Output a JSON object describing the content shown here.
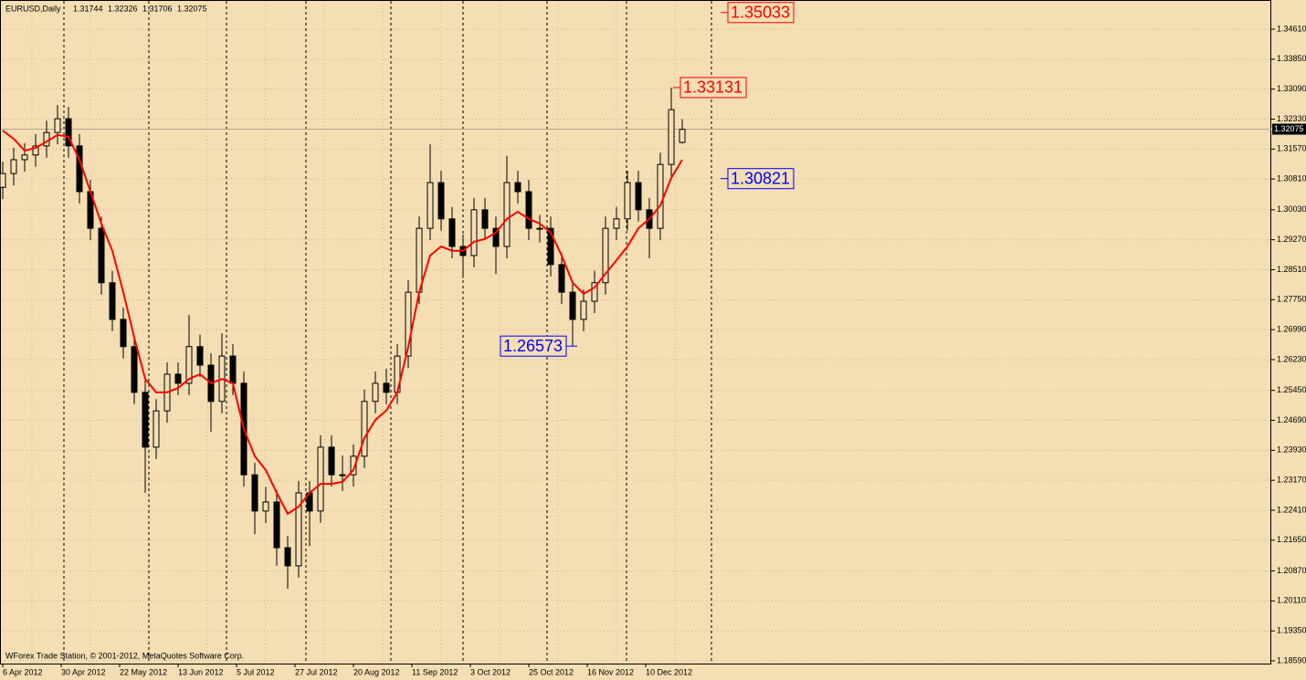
{
  "chart_data": {
    "type": "candlestick",
    "title": "EURUSD,Daily",
    "header_values": [
      1.31744,
      1.32326,
      1.31706,
      1.32075
    ],
    "footer": "WForex Trade Station, © 2001-2012, MetaQuotes Software Corp.",
    "last_price": 1.32075,
    "categories": [
      "6 Apr 2012",
      "30 Apr 2012",
      "22 May 2012",
      "13 Jun 2012",
      "5 Jul 2012",
      "27 Jul 2012",
      "20 Aug 2012",
      "11 Sep 2012",
      "3 Oct 2012",
      "25 Oct 2012",
      "16 Nov 2012",
      "10 Dec 2012"
    ],
    "ylim": [
      1.18521,
      1.35351
    ],
    "yticks": [
      {
        "value": 1.3461,
        "label": "1.34610"
      },
      {
        "value": 1.3385,
        "label": "1.33850"
      },
      {
        "value": 1.3309,
        "label": "1.33090"
      },
      {
        "value": 1.3233,
        "label": "1.32330"
      },
      {
        "value": 1.3157,
        "label": "1.31570"
      },
      {
        "value": 1.3081,
        "label": "1.30810"
      },
      {
        "value": 1.3003,
        "label": "1.30030"
      },
      {
        "value": 1.2927,
        "label": "1.29270"
      },
      {
        "value": 1.2851,
        "label": "1.28510"
      },
      {
        "value": 1.2775,
        "label": "1.27750"
      },
      {
        "value": 1.2699,
        "label": "1.26990"
      },
      {
        "value": 1.2623,
        "label": "1.26230"
      },
      {
        "value": 1.2545,
        "label": "1.25450"
      },
      {
        "value": 1.2469,
        "label": "1.24690"
      },
      {
        "value": 1.2393,
        "label": "1.23930"
      },
      {
        "value": 1.2317,
        "label": "1.23170"
      },
      {
        "value": 1.2241,
        "label": "1.22410"
      },
      {
        "value": 1.2165,
        "label": "1.21650"
      },
      {
        "value": 1.2087,
        "label": "1.20870"
      },
      {
        "value": 1.2011,
        "label": "1.20110"
      },
      {
        "value": 1.1935,
        "label": "1.19350"
      },
      {
        "value": 1.1859,
        "label": "1.18590"
      }
    ],
    "grid": true,
    "ohlc": [
      [
        1.306,
        1.3125,
        1.303,
        1.3095
      ],
      [
        1.3095,
        1.316,
        1.3065,
        1.313
      ],
      [
        1.313,
        1.3172,
        1.31,
        1.3142
      ],
      [
        1.3142,
        1.3195,
        1.3112,
        1.3165
      ],
      [
        1.3165,
        1.3229,
        1.3135,
        1.3199
      ],
      [
        1.3199,
        1.3269,
        1.3169,
        1.3234
      ],
      [
        1.3234,
        1.3264,
        1.3135,
        1.3165
      ],
      [
        1.3165,
        1.3195,
        1.3019,
        1.3049
      ],
      [
        1.3049,
        1.3079,
        1.2926,
        1.2956
      ],
      [
        1.2956,
        1.2986,
        1.2788,
        1.2818
      ],
      [
        1.2818,
        1.2848,
        1.2695,
        1.2725
      ],
      [
        1.2725,
        1.2755,
        1.2626,
        1.2656
      ],
      [
        1.2656,
        1.2686,
        1.251,
        1.254
      ],
      [
        1.254,
        1.257,
        1.2285,
        1.2401
      ],
      [
        1.2401,
        1.2523,
        1.2371,
        1.2493
      ],
      [
        1.2493,
        1.2616,
        1.2463,
        1.2586
      ],
      [
        1.2586,
        1.2616,
        1.2533,
        1.2563
      ],
      [
        1.2563,
        1.2736,
        1.2533,
        1.2656
      ],
      [
        1.2656,
        1.2686,
        1.2579,
        1.2609
      ],
      [
        1.2609,
        1.2639,
        1.244,
        1.2517
      ],
      [
        1.2517,
        1.269,
        1.2487,
        1.2632
      ],
      [
        1.2632,
        1.2662,
        1.2533,
        1.2563
      ],
      [
        1.2563,
        1.2593,
        1.2301,
        1.2331
      ],
      [
        1.2331,
        1.2361,
        1.218,
        1.2239
      ],
      [
        1.2239,
        1.23,
        1.2209,
        1.2262
      ],
      [
        1.2262,
        1.2292,
        1.21,
        1.2146
      ],
      [
        1.2146,
        1.2176,
        1.2042,
        1.21
      ],
      [
        1.21,
        1.2315,
        1.207,
        1.2285
      ],
      [
        1.2285,
        1.2315,
        1.215,
        1.2239
      ],
      [
        1.2239,
        1.2431,
        1.2209,
        1.2401
      ],
      [
        1.2401,
        1.2431,
        1.2301,
        1.2331
      ],
      [
        1.2331,
        1.238,
        1.229,
        1.2331
      ],
      [
        1.2331,
        1.2408,
        1.2301,
        1.2378
      ],
      [
        1.2378,
        1.2547,
        1.2348,
        1.2517
      ],
      [
        1.2517,
        1.2593,
        1.2487,
        1.2563
      ],
      [
        1.2563,
        1.26,
        1.251,
        1.254
      ],
      [
        1.254,
        1.2662,
        1.251,
        1.2632
      ],
      [
        1.2632,
        1.2824,
        1.2602,
        1.2794
      ],
      [
        1.2794,
        1.2986,
        1.2764,
        1.2956
      ],
      [
        1.2956,
        1.3169,
        1.2926,
        1.3072
      ],
      [
        1.3072,
        1.3102,
        1.295,
        1.298
      ],
      [
        1.298,
        1.301,
        1.288,
        1.291
      ],
      [
        1.291,
        1.294,
        1.283,
        1.2887
      ],
      [
        1.2887,
        1.3033,
        1.2857,
        1.3003
      ],
      [
        1.3003,
        1.3033,
        1.2926,
        1.2956
      ],
      [
        1.2956,
        1.2986,
        1.284,
        1.291
      ],
      [
        1.291,
        1.314,
        1.288,
        1.3072
      ],
      [
        1.3072,
        1.3102,
        1.3019,
        1.3049
      ],
      [
        1.3049,
        1.3079,
        1.2926,
        1.2956
      ],
      [
        1.2956,
        1.299,
        1.292,
        1.2956
      ],
      [
        1.2956,
        1.2986,
        1.2834,
        1.2864
      ],
      [
        1.2864,
        1.2894,
        1.2764,
        1.2794
      ],
      [
        1.2794,
        1.2824,
        1.2657,
        1.2725
      ],
      [
        1.2725,
        1.2801,
        1.2695,
        1.2771
      ],
      [
        1.2771,
        1.2848,
        1.2741,
        1.2818
      ],
      [
        1.2818,
        1.2986,
        1.2788,
        1.2956
      ],
      [
        1.2956,
        1.301,
        1.2926,
        1.298
      ],
      [
        1.298,
        1.3102,
        1.295,
        1.3072
      ],
      [
        1.3072,
        1.3102,
        1.2973,
        1.3003
      ],
      [
        1.3003,
        1.3033,
        1.288,
        1.2956
      ],
      [
        1.2956,
        1.3148,
        1.2926,
        1.3118
      ],
      [
        1.3118,
        1.3313,
        1.3088,
        1.3257
      ],
      [
        1.3174,
        1.3233,
        1.3171,
        1.3207
      ]
    ],
    "candle_color": "#000000",
    "moving_average": {
      "color": "#ff0000",
      "values": [
        1.3204,
        1.3183,
        1.3153,
        1.316,
        1.3176,
        1.3193,
        1.3188,
        1.313,
        1.3049,
        1.2968,
        1.2899,
        1.2794,
        1.2679,
        1.2574,
        1.254,
        1.254,
        1.2551,
        1.2574,
        1.2586,
        1.2563,
        1.2574,
        1.2563,
        1.2447,
        1.2378,
        1.2343,
        1.2285,
        1.2232,
        1.225,
        1.2285,
        1.2308,
        1.2308,
        1.2313,
        1.2343,
        1.2424,
        1.247,
        1.2494,
        1.254,
        1.2655,
        1.2794,
        1.2887,
        1.291,
        1.2899,
        1.2899,
        1.2922,
        1.2929,
        1.2945,
        1.298,
        1.2998,
        1.298,
        1.2968,
        1.2945,
        1.2887,
        1.2818,
        1.279,
        1.2806,
        1.2841,
        1.2875,
        1.291,
        1.2956,
        1.298,
        1.3014,
        1.3084,
        1.313
      ]
    },
    "annotations": [
      {
        "value": 1.35033,
        "color": "#ff0000"
      },
      {
        "value": 1.33131,
        "color": "#ff0000"
      },
      {
        "value": 1.30821,
        "color": "#0000ff"
      },
      {
        "value": 1.26573,
        "color": "#0000ff"
      }
    ]
  }
}
